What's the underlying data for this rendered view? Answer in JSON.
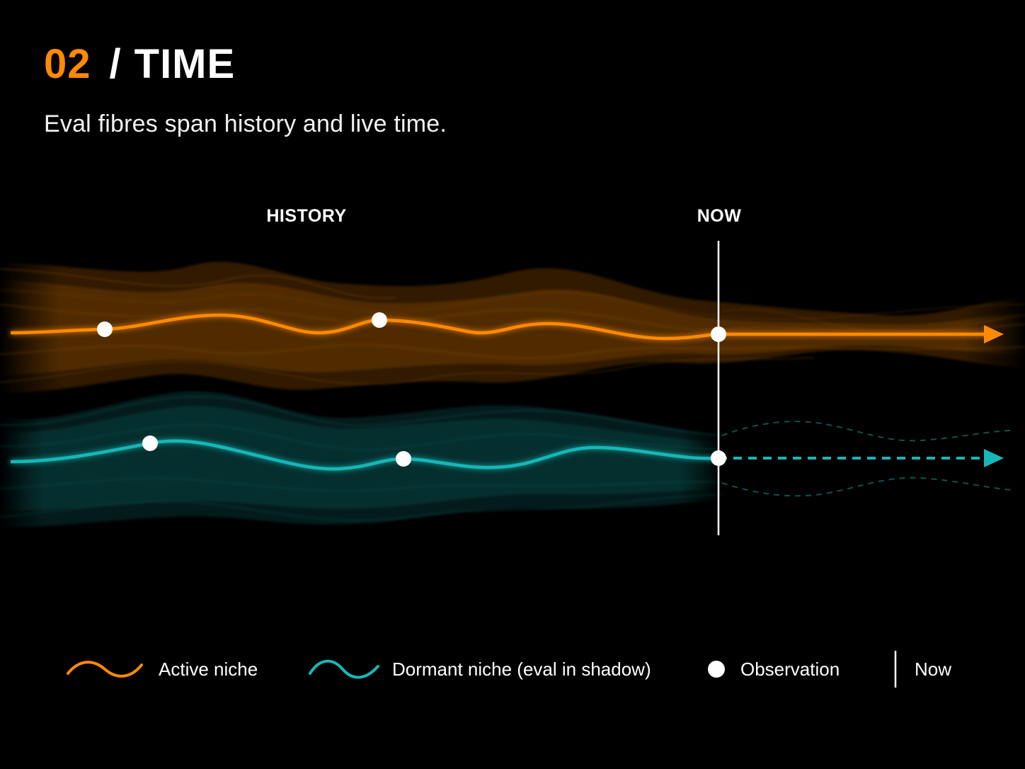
{
  "header": {
    "number": "02",
    "separator": "/",
    "title": "TIME",
    "subtitle": "Eval fibres span history and live time."
  },
  "timeline": {
    "history_label": "HISTORY",
    "now_label": "NOW"
  },
  "legend": {
    "active": "Active niche",
    "dormant": "Dormant niche (eval in shadow)",
    "observation": "Observation",
    "now": "Now"
  },
  "colors": {
    "background": "#000000",
    "active": "#ff8a00",
    "dormant": "#17b7b7",
    "observation": "#ffffff",
    "now_line": "#ffffff"
  },
  "icons": {
    "active_legend": "orange-wave-icon",
    "dormant_legend": "teal-wave-icon",
    "observation_legend": "white-dot-icon",
    "now_legend": "vertical-line-icon",
    "arrow": "arrow-head-icon"
  }
}
